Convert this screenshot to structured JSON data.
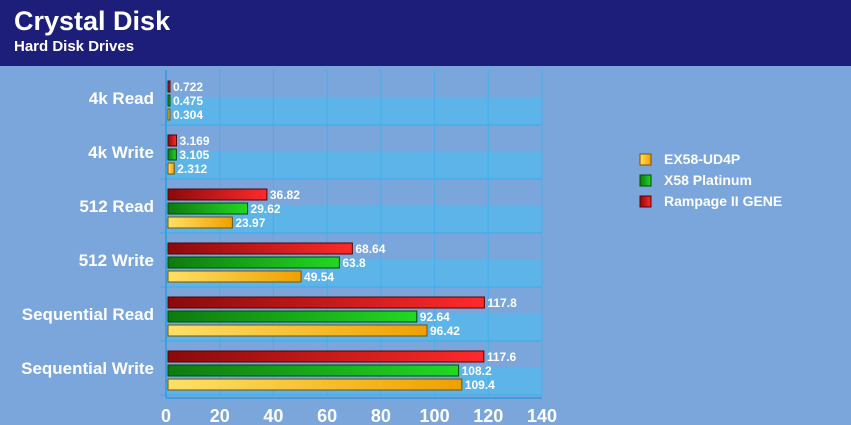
{
  "header": {
    "title": "Crystal Disk",
    "subtitle": "Hard Disk Drives"
  },
  "chart_data": {
    "type": "bar",
    "orientation": "horizontal",
    "title": "Crystal Disk",
    "subtitle": "Hard Disk Drives",
    "xlabel": "",
    "ylabel": "",
    "xlim": [
      0,
      140
    ],
    "x_ticks": [
      0,
      20,
      40,
      60,
      80,
      100,
      120,
      140
    ],
    "grid": true,
    "legend_position": "right",
    "categories": [
      "4k Read",
      "4k Write",
      "512 Read",
      "512 Write",
      "Sequential Read",
      "Sequential Write"
    ],
    "series": [
      {
        "name": "Rampage II GENE",
        "color": "#cc1a1a",
        "values": [
          0.722,
          3.169,
          36.82,
          68.64,
          117.8,
          117.6
        ],
        "labels": [
          "0.722",
          "3.169",
          "36.82",
          "68.64",
          "117.8",
          "117.6"
        ]
      },
      {
        "name": "X58 Platinum",
        "color": "#1ea81e",
        "values": [
          0.475,
          3.105,
          29.62,
          63.8,
          92.64,
          108.2
        ],
        "labels": [
          "0.475",
          "3.105",
          "29.62",
          "63.8",
          "92.64",
          "108.2"
        ]
      },
      {
        "name": "EX58-UD4P",
        "color": "#f0a800",
        "values": [
          0.304,
          2.312,
          23.97,
          49.54,
          96.42,
          109.4
        ],
        "labels": [
          "0.304",
          "2.312",
          "23.97",
          "49.54",
          "96.42",
          "109.4"
        ]
      }
    ],
    "legend_order": [
      "EX58-UD4P",
      "X58 Platinum",
      "Rampage II GENE"
    ]
  }
}
